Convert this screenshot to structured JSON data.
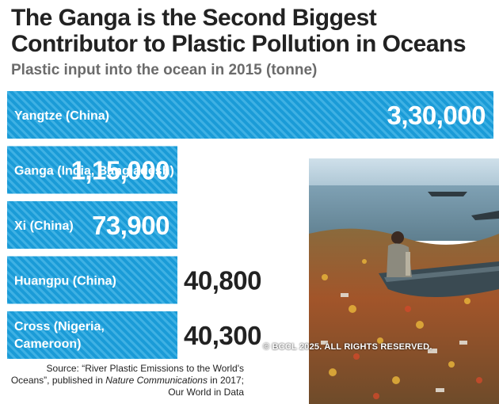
{
  "title": "The Ganga is the Second Biggest Contributor to Plastic Pollution in Oceans",
  "subtitle": "Plastic input into the ocean in 2015 (tonne)",
  "copyright": "© BCCL 2025. ALL RIGHTS RESERVED.",
  "source": {
    "prefix": "Source: “River Plastic Emissions to the World's Oceans”, published in ",
    "journal": "Nature Communications",
    "suffix": " in 2017; Our World in Data"
  },
  "colors": {
    "bar": "#1a9bd7",
    "bar_stripe": "#3fb1e4",
    "title": "#222222",
    "subtitle": "#6b6b6b"
  },
  "chart_data": {
    "type": "bar",
    "orientation": "horizontal",
    "title": "The Ganga is the Second Biggest Contributor to Plastic Pollution in Oceans",
    "subtitle": "Plastic input into the ocean in 2015 (tonne)",
    "categories": [
      "Yangtze (China)",
      "Ganga (India, Bangladesh)",
      "Xi (China)",
      "Huangpu (China)",
      "Cross (Nigeria, Cameroon)"
    ],
    "category_lines": [
      [
        "Yangtze (China)"
      ],
      [
        "Ganga (India, Bangladesh)"
      ],
      [
        "Xi (China)"
      ],
      [
        "Huangpu (China)"
      ],
      [
        "Cross (Nigeria,",
        "Cameroon)"
      ]
    ],
    "values": [
      330000,
      115000,
      73900,
      40800,
      40300
    ],
    "value_labels": [
      "3,30,000",
      "1,15,000",
      "73,900",
      "40,800",
      "40,300"
    ],
    "value_label_position": [
      "inside",
      "inside",
      "inside",
      "outside",
      "outside"
    ],
    "unit": "tonne",
    "xlabel": "",
    "ylabel": "",
    "grid": false,
    "legend": "none"
  }
}
